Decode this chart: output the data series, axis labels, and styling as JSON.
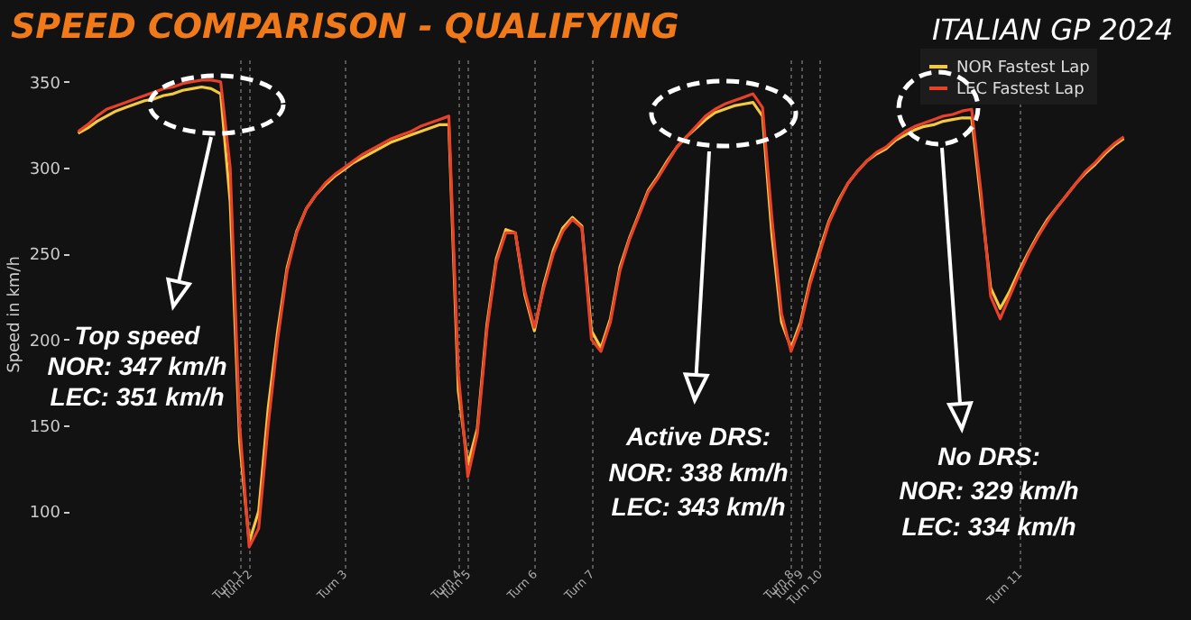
{
  "chart_data": {
    "type": "line",
    "title": "SPEED COMPARISON - QUALIFYING",
    "subtitle": "ITALIAN GP 2024",
    "ylabel": "Speed in km/h",
    "categories": [
      null,
      null,
      null,
      null,
      null,
      null,
      null,
      null,
      null,
      null,
      null,
      null,
      null,
      null,
      null,
      null,
      null,
      "Turn 1",
      "Turn 2",
      null,
      null,
      null,
      null,
      null,
      null,
      null,
      null,
      null,
      "Turn 3",
      null,
      null,
      null,
      null,
      null,
      null,
      null,
      null,
      null,
      null,
      null,
      "Turn 4",
      "Turn 5",
      null,
      null,
      null,
      null,
      null,
      null,
      "Turn 6",
      null,
      null,
      null,
      null,
      null,
      "Turn 7",
      null,
      null,
      null,
      null,
      null,
      null,
      null,
      null,
      null,
      null,
      null,
      null,
      null,
      null,
      null,
      null,
      null,
      null,
      null,
      null,
      "Turn 8",
      "Turn 9",
      null,
      "Turn 10",
      null,
      null,
      null,
      null,
      null,
      null,
      null,
      null,
      null,
      null,
      null,
      null,
      null,
      null,
      null,
      null,
      null,
      null,
      null,
      null,
      "Turn 11",
      null,
      null,
      null,
      null,
      null,
      null,
      null,
      null,
      null,
      null,
      null
    ],
    "series": [
      {
        "name": "NOR Fastest Lap",
        "color": "#f5c842",
        "values": [
          320,
          323,
          327,
          330,
          333,
          335,
          337,
          339,
          340,
          342,
          343,
          345,
          346,
          347,
          346,
          343,
          280,
          140,
          82,
          100,
          160,
          205,
          242,
          263,
          276,
          284,
          290,
          295,
          299,
          303,
          306,
          309,
          312,
          315,
          317,
          319,
          321,
          323,
          325,
          325,
          170,
          127,
          148,
          208,
          247,
          264,
          262,
          226,
          205,
          232,
          252,
          265,
          271,
          266,
          205,
          195,
          212,
          242,
          259,
          273,
          287,
          295,
          304,
          312,
          318,
          323,
          328,
          332,
          334,
          336,
          337,
          338,
          330,
          260,
          210,
          195,
          210,
          234,
          252,
          269,
          281,
          291,
          298,
          304,
          308,
          311,
          316,
          319,
          322,
          324,
          325,
          327,
          328,
          329,
          329,
          280,
          230,
          218,
          228,
          240,
          251,
          261,
          270,
          277,
          284,
          291,
          297,
          302,
          308,
          313,
          317
        ]
      },
      {
        "name": "LEC Fastest Lap",
        "color": "#e8412a",
        "values": [
          321,
          325,
          330,
          334,
          336,
          338,
          340,
          342,
          344,
          346,
          347,
          349,
          350,
          351,
          351,
          350,
          300,
          150,
          79,
          90,
          150,
          200,
          240,
          262,
          276,
          284,
          291,
          296,
          300,
          304,
          308,
          311,
          314,
          317,
          319,
          321,
          324,
          326,
          328,
          330,
          180,
          120,
          145,
          205,
          245,
          262,
          262,
          228,
          207,
          230,
          250,
          263,
          270,
          265,
          200,
          193,
          210,
          240,
          258,
          272,
          286,
          294,
          303,
          312,
          318,
          324,
          330,
          334,
          337,
          339,
          341,
          343,
          335,
          270,
          215,
          193,
          208,
          232,
          250,
          268,
          280,
          291,
          298,
          304,
          309,
          312,
          317,
          321,
          324,
          326,
          328,
          330,
          331,
          333,
          334,
          285,
          225,
          212,
          225,
          238,
          250,
          260,
          269,
          277,
          284,
          291,
          298,
          303,
          309,
          314,
          318
        ]
      }
    ],
    "ylim": [
      67,
      363
    ],
    "yticks": [
      100,
      150,
      200,
      250,
      300,
      350
    ],
    "legend": "top right",
    "grid": "x",
    "annotations": [
      "Top speed",
      "NOR: 347 km/h",
      "LEC: 351 km/h",
      "Active DRS:",
      "NOR: 338 km/h",
      "LEC: 343 km/h",
      "No DRS:",
      "NOR: 329 km/h",
      "LEC: 334 km/h"
    ]
  }
}
